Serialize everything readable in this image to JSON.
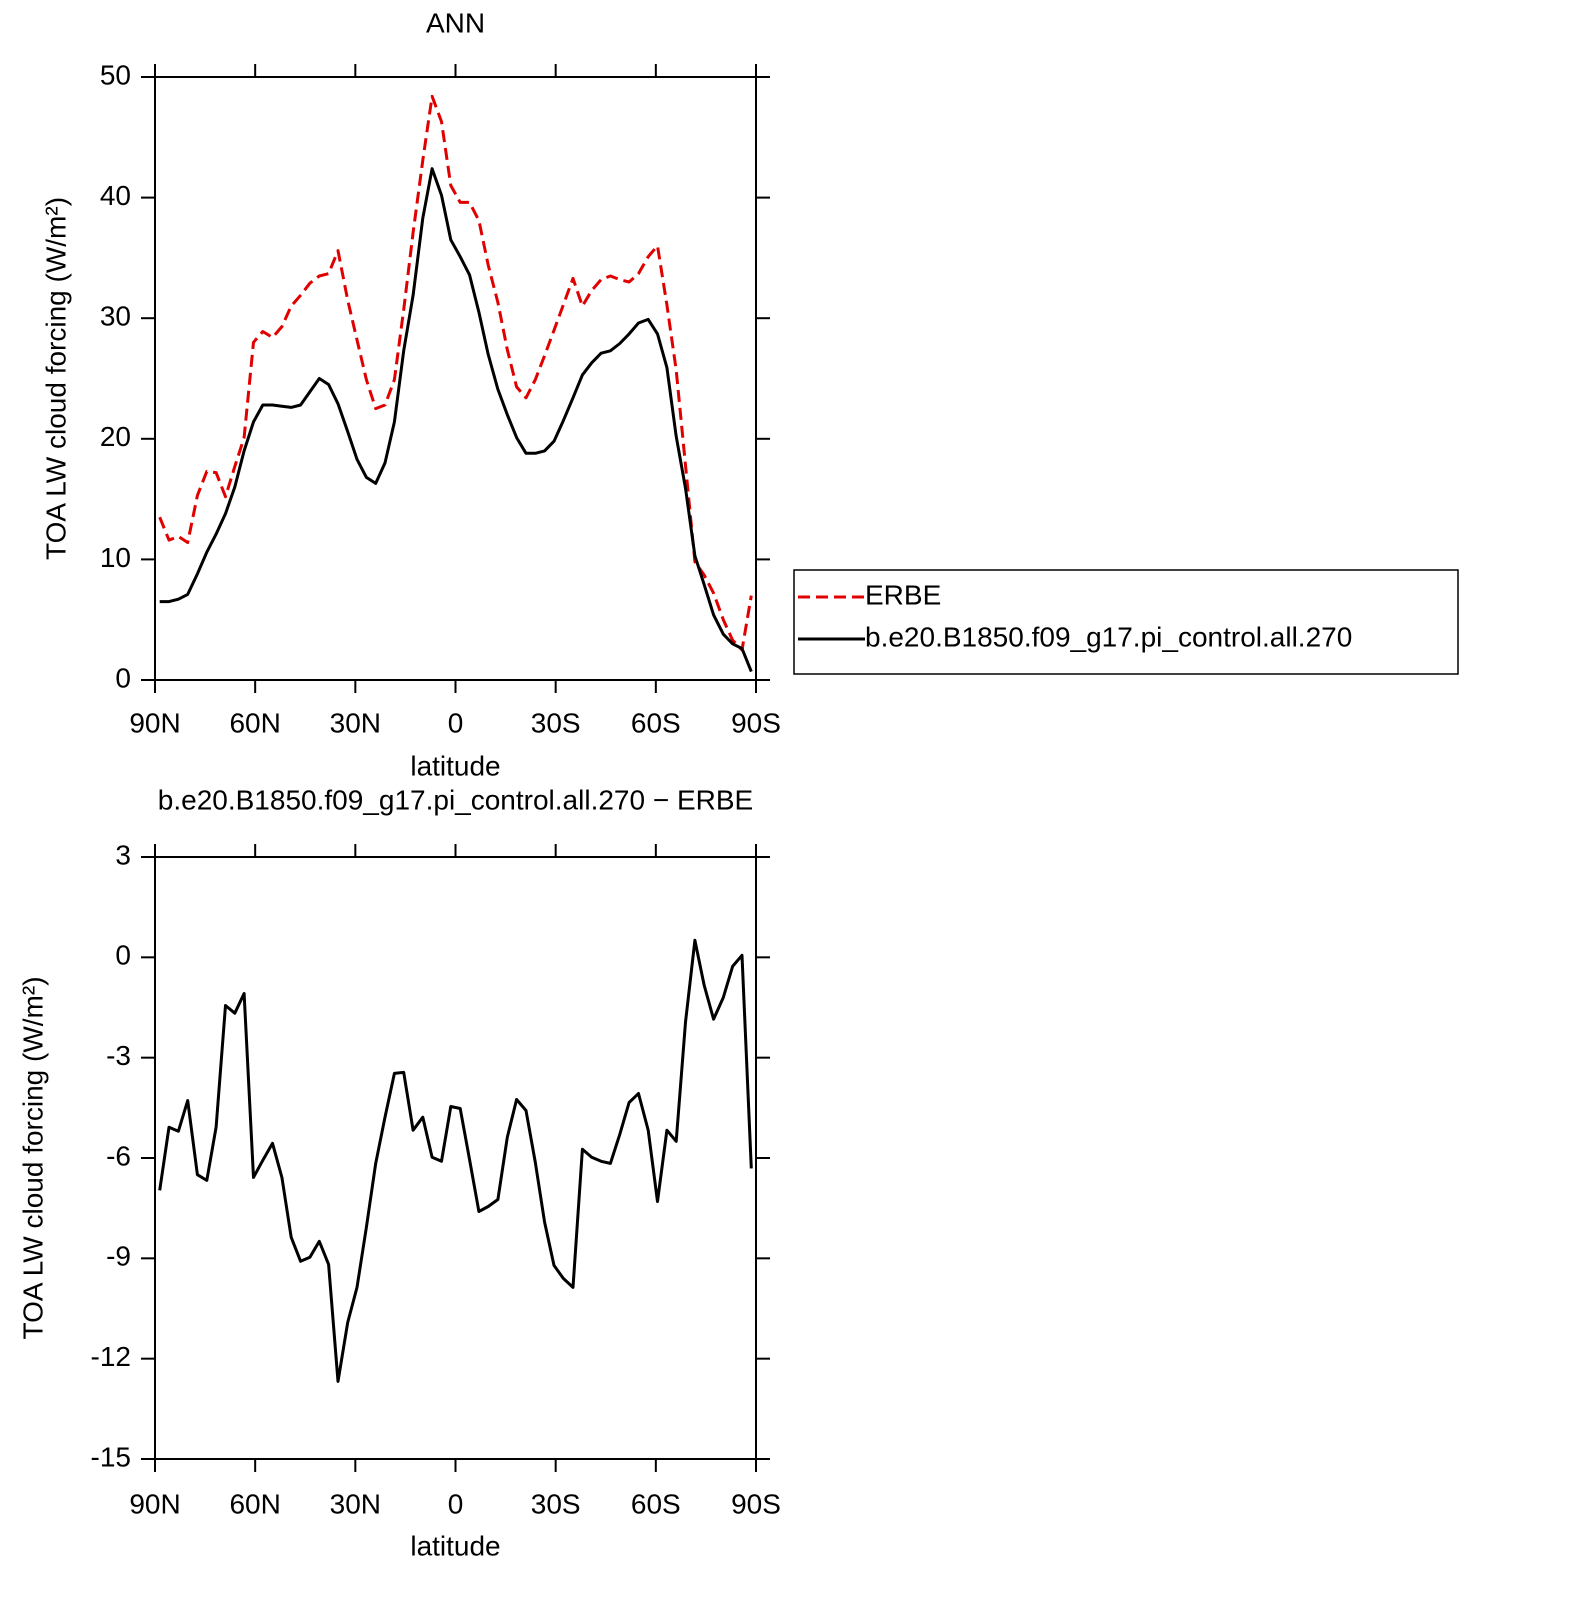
{
  "chart_data": [
    {
      "type": "line",
      "title": "ANN",
      "x_label": "latitude",
      "y_label": "TOA LW cloud forcing (W/m²)",
      "x": [
        88.6,
        85.8,
        83.0,
        80.2,
        77.3,
        74.5,
        71.7,
        68.9,
        66.1,
        63.3,
        60.5,
        57.7,
        54.8,
        52.0,
        49.2,
        46.4,
        43.6,
        40.8,
        38.0,
        35.2,
        32.3,
        29.5,
        26.7,
        23.9,
        21.1,
        18.3,
        15.5,
        12.7,
        9.8,
        7.0,
        4.2,
        1.4,
        -1.4,
        -4.2,
        -7.0,
        -9.8,
        -12.7,
        -15.5,
        -18.3,
        -21.1,
        -23.9,
        -26.7,
        -29.5,
        -32.3,
        -35.2,
        -38.0,
        -40.8,
        -43.6,
        -46.4,
        -49.2,
        -52.0,
        -54.8,
        -57.7,
        -60.5,
        -63.3,
        -66.1,
        -68.9,
        -71.7,
        -74.5,
        -77.3,
        -80.2,
        -83.0,
        -85.8,
        -88.6
      ],
      "xlim": [
        90,
        -90
      ],
      "xticks": [
        {
          "value": 90,
          "label": "90N"
        },
        {
          "value": 60,
          "label": "60N"
        },
        {
          "value": 30,
          "label": "30N"
        },
        0,
        {
          "value": -30,
          "label": "30S"
        },
        {
          "value": -60,
          "label": "60S"
        },
        {
          "value": -90,
          "label": "90S"
        }
      ],
      "ylim": [
        0,
        50
      ],
      "yticks": [
        0,
        10,
        20,
        30,
        40,
        50
      ],
      "legend": "right",
      "series": [
        {
          "name": "ERBE",
          "color": "#e00000",
          "dash": true,
          "values": [
            13.5,
            11.6,
            11.9,
            11.4,
            15.3,
            17.3,
            17.2,
            15.2,
            17.7,
            20.1,
            28.0,
            28.9,
            28.4,
            29.3,
            31.0,
            31.9,
            32.9,
            33.5,
            33.7,
            35.6,
            31.5,
            28.2,
            24.9,
            22.5,
            22.8,
            24.9,
            30.7,
            37.1,
            43.1,
            48.4,
            46.3,
            41.0,
            39.6,
            39.6,
            38.1,
            34.4,
            31.3,
            27.4,
            24.3,
            23.4,
            24.9,
            26.9,
            29.0,
            31.1,
            33.3,
            31.0,
            32.3,
            33.2,
            33.5,
            33.2,
            33.0,
            33.7,
            35.1,
            36.0,
            31.1,
            25.7,
            17.8,
            9.8,
            8.7,
            7.2,
            5.0,
            3.3,
            2.5,
            7.0
          ]
        },
        {
          "name": "b.e20.B1850.f09_g17.pi_control.all.270",
          "color": "#000000",
          "dash": false,
          "values": [
            6.5,
            6.5,
            6.7,
            7.1,
            8.8,
            10.6,
            12.1,
            13.8,
            16.0,
            19.0,
            21.4,
            22.8,
            22.8,
            22.7,
            22.6,
            22.8,
            23.9,
            25.0,
            24.5,
            22.9,
            20.6,
            18.3,
            16.8,
            16.3,
            18.0,
            21.4,
            27.3,
            31.9,
            38.3,
            42.4,
            40.2,
            36.5,
            35.1,
            33.6,
            30.5,
            27.0,
            24.1,
            22.0,
            20.1,
            18.8,
            18.8,
            19.0,
            19.8,
            21.5,
            23.4,
            25.3,
            26.3,
            27.1,
            27.3,
            27.9,
            28.7,
            29.6,
            29.9,
            28.7,
            25.9,
            20.2,
            15.9,
            10.3,
            7.9,
            5.4,
            3.8,
            3.0,
            2.6,
            0.7
          ]
        }
      ]
    },
    {
      "type": "line",
      "title": "b.e20.B1850.f09_g17.pi_control.all.270 − ERBE",
      "x_label": "latitude",
      "y_label": "TOA LW cloud forcing (W/m²)",
      "x": [
        88.6,
        85.8,
        83.0,
        80.2,
        77.3,
        74.5,
        71.7,
        68.9,
        66.1,
        63.3,
        60.5,
        57.7,
        54.8,
        52.0,
        49.2,
        46.4,
        43.6,
        40.8,
        38.0,
        35.2,
        32.3,
        29.5,
        26.7,
        23.9,
        21.1,
        18.3,
        15.5,
        12.7,
        9.8,
        7.0,
        4.2,
        1.4,
        -1.4,
        -4.2,
        -7.0,
        -9.8,
        -12.7,
        -15.5,
        -18.3,
        -21.1,
        -23.9,
        -26.7,
        -29.5,
        -32.3,
        -35.2,
        -38.0,
        -40.8,
        -43.6,
        -46.4,
        -49.2,
        -52.0,
        -54.8,
        -57.7,
        -60.5,
        -63.3,
        -66.1,
        -68.9,
        -71.7,
        -74.5,
        -77.3,
        -80.2,
        -83.0,
        -85.8,
        -88.6
      ],
      "xlim": [
        90,
        -90
      ],
      "xticks": [
        {
          "value": 90,
          "label": "90N"
        },
        {
          "value": 60,
          "label": "60N"
        },
        {
          "value": 30,
          "label": "30N"
        },
        0,
        {
          "value": -30,
          "label": "30S"
        },
        {
          "value": -60,
          "label": "60S"
        },
        {
          "value": -90,
          "label": "90S"
        }
      ],
      "ylim": [
        -15,
        3
      ],
      "yticks": [
        -15,
        -12,
        -9,
        -6,
        -3,
        0,
        3
      ],
      "color": "#000000",
      "values": [
        -6.97,
        -5.08,
        -5.2,
        -4.28,
        -6.5,
        -6.67,
        -5.08,
        -1.44,
        -1.67,
        -1.08,
        -6.58,
        -6.07,
        -5.56,
        -6.58,
        -8.37,
        -9.09,
        -8.97,
        -8.49,
        -9.18,
        -12.68,
        -10.92,
        -9.87,
        -8.07,
        -6.16,
        -4.78,
        -3.47,
        -3.44,
        -5.17,
        -4.78,
        -5.98,
        -6.1,
        -4.46,
        -4.52,
        -6.04,
        -7.6,
        -7.45,
        -7.24,
        -5.38,
        -4.25,
        -4.58,
        -6.13,
        -7.92,
        -9.21,
        -9.6,
        -9.87,
        -5.74,
        -5.98,
        -6.1,
        -6.16,
        -5.29,
        -4.34,
        -4.07,
        -5.17,
        -7.3,
        -5.17,
        -5.5,
        -1.94,
        0.51,
        -0.84,
        -1.85,
        -1.2,
        -0.27,
        0.06,
        -6.31
      ]
    }
  ]
}
